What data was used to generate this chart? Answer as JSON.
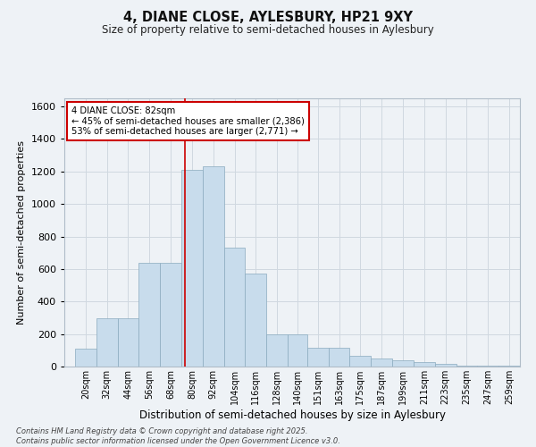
{
  "title_line1": "4, DIANE CLOSE, AYLESBURY, HP21 9XY",
  "title_line2": "Size of property relative to semi-detached houses in Aylesbury",
  "xlabel": "Distribution of semi-detached houses by size in Aylesbury",
  "ylabel": "Number of semi-detached properties",
  "annotation_line1": "4 DIANE CLOSE: 82sqm",
  "annotation_line2": "← 45% of semi-detached houses are smaller (2,386)",
  "annotation_line3": "53% of semi-detached houses are larger (2,771) →",
  "property_size": 82,
  "vline_x": 82,
  "categories": [
    "20sqm",
    "32sqm",
    "44sqm",
    "56sqm",
    "68sqm",
    "80sqm",
    "92sqm",
    "104sqm",
    "116sqm",
    "128sqm",
    "140sqm",
    "151sqm",
    "163sqm",
    "175sqm",
    "187sqm",
    "199sqm",
    "211sqm",
    "223sqm",
    "235sqm",
    "247sqm",
    "259sqm"
  ],
  "bin_left_edges": [
    20,
    32,
    44,
    56,
    68,
    80,
    92,
    104,
    116,
    128,
    140,
    151,
    163,
    175,
    187,
    199,
    211,
    223,
    235,
    247,
    259
  ],
  "bin_widths": [
    12,
    12,
    12,
    12,
    12,
    12,
    12,
    12,
    12,
    12,
    11,
    12,
    12,
    12,
    12,
    12,
    12,
    12,
    12,
    12,
    12
  ],
  "values": [
    110,
    295,
    295,
    640,
    640,
    1210,
    1230,
    730,
    570,
    200,
    200,
    115,
    115,
    65,
    50,
    40,
    25,
    15,
    5,
    5,
    5
  ],
  "bar_color": "#c8dcec",
  "bar_edge_color": "#8aaabe",
  "vline_color": "#cc0000",
  "grid_color": "#d0d8e0",
  "bg_color": "#eef2f6",
  "annotation_bg": "#ffffff",
  "annotation_edge": "#cc0000",
  "footer_line1": "Contains HM Land Registry data © Crown copyright and database right 2025.",
  "footer_line2": "Contains public sector information licensed under the Open Government Licence v3.0.",
  "ylim": [
    0,
    1650
  ],
  "yticks": [
    0,
    200,
    400,
    600,
    800,
    1000,
    1200,
    1400,
    1600
  ]
}
